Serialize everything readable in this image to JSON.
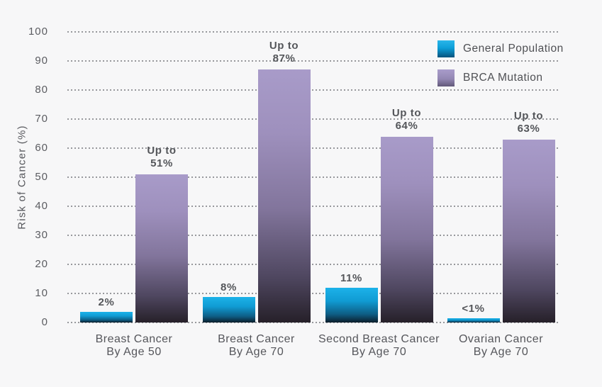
{
  "page": {
    "background": "#f7f7f8"
  },
  "chart_data": {
    "type": "bar",
    "title": "",
    "xlabel": "",
    "ylabel": "Risk of Cancer (%)",
    "ylim": [
      0,
      100
    ],
    "yticks": [
      0,
      10,
      20,
      30,
      40,
      50,
      60,
      70,
      80,
      90,
      100
    ],
    "grid": "dotted-horizontal",
    "legend_position": "top-right",
    "categories": [
      "Breast Cancer|By Age 50",
      "Breast Cancer|By Age 70",
      "Second Breast Cancer|By Age 70",
      "Ovarian Cancer|By Age 70"
    ],
    "series": [
      {
        "name": "General Population",
        "values": [
          2,
          8,
          11,
          0.9
        ],
        "value_labels": [
          "2%",
          "8%",
          "11%",
          "<1%"
        ],
        "color_top": "#1cb2e9",
        "color_bottom": "#0c1e2b"
      },
      {
        "name": "BRCA Mutation",
        "values": [
          51,
          87,
          64,
          63
        ],
        "value_labels": [
          "Up to|51%",
          "Up to|87%",
          "Up to|64%",
          "Up to|63%"
        ],
        "color_top": "#a89bc9",
        "color_bottom": "#262029"
      }
    ]
  },
  "legend": {
    "items": [
      {
        "label": "General Population",
        "swatch": "blue-gradient"
      },
      {
        "label": "BRCA Mutation",
        "swatch": "purple-gradient"
      }
    ]
  },
  "colors": {
    "text": "#54565b",
    "gridline": "#97989c",
    "background": "#f7f7f8",
    "blue_top": "#1cb2e9",
    "blue_bottom": "#0c1e2b",
    "purple_top": "#a89bc9",
    "purple_bottom": "#262029"
  }
}
